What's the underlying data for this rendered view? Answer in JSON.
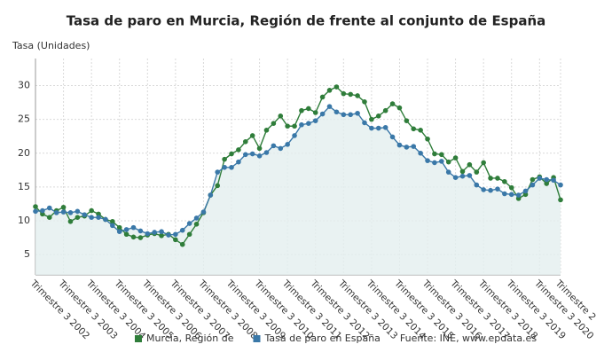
{
  "chart_data": {
    "type": "line",
    "title": "Tasa de paro en Murcia, Región de frente al conjunto de España",
    "y_label": "Tasa (Unidades)",
    "source": "Fuente: INE, www.epdata.es",
    "categories": [
      "Trimestre 3 2002",
      null,
      null,
      null,
      "Trimestre 3 2003",
      null,
      null,
      null,
      "Trimestre 3 2004",
      null,
      null,
      null,
      "Trimestre 3 2005",
      null,
      null,
      null,
      "Trimestre 3 2006",
      null,
      null,
      null,
      "Trimestre 3 2007",
      null,
      null,
      null,
      "Trimestre 3 2008",
      null,
      null,
      null,
      "Trimestre 3 2009",
      null,
      null,
      null,
      "Trimestre 3 2010",
      null,
      null,
      null,
      "Trimestre 3 2011",
      null,
      null,
      null,
      "Trimestre 3 2012",
      null,
      null,
      null,
      "Trimestre 3 2013",
      null,
      null,
      null,
      "Trimestre 3 2014",
      null,
      null,
      null,
      "Trimestre 3 2015",
      null,
      null,
      null,
      "Trimestre 3 2016",
      null,
      null,
      null,
      "Trimestre 3 2017",
      null,
      null,
      null,
      "Trimestre 3 2018",
      null,
      null,
      null,
      "Trimestre 3 2019",
      null,
      null,
      null,
      "Trimestre 3 2020",
      null,
      null,
      "Trimestre 2"
    ],
    "series": [
      {
        "name": "Murcia, Región de",
        "color": "#2f7d3a",
        "values": [
          12.1,
          11.0,
          10.5,
          11.5,
          12.0,
          9.9,
          10.5,
          10.7,
          11.5,
          11.0,
          10.2,
          9.9,
          9.0,
          8.0,
          7.6,
          7.5,
          7.9,
          8.1,
          7.8,
          8.0,
          7.2,
          6.5,
          8.0,
          9.5,
          11.2,
          13.8,
          15.2,
          19.1,
          19.9,
          20.5,
          21.7,
          22.6,
          20.7,
          23.4,
          24.4,
          25.5,
          24.0,
          24.0,
          26.3,
          26.6,
          26.0,
          28.3,
          29.3,
          29.8,
          28.8,
          28.7,
          28.5,
          27.6,
          25.0,
          25.5,
          26.3,
          27.3,
          26.7,
          24.8,
          23.6,
          23.4,
          22.1,
          19.9,
          19.8,
          18.7,
          19.3,
          17.3,
          18.3,
          17.2,
          18.6,
          16.3,
          16.3,
          15.8,
          14.9,
          13.3,
          13.9,
          16.1,
          16.5,
          15.5,
          16.4,
          13.1
        ]
      },
      {
        "name": "Tasa de paro en España",
        "color": "#3a78a8",
        "values": [
          11.4,
          11.5,
          11.9,
          11.2,
          11.3,
          11.2,
          11.4,
          10.9,
          10.5,
          10.5,
          10.2,
          9.3,
          8.4,
          8.7,
          9.0,
          8.5,
          8.1,
          8.3,
          8.4,
          7.9,
          8.0,
          8.6,
          9.6,
          10.4,
          11.3,
          13.8,
          17.2,
          17.9,
          17.9,
          18.7,
          19.8,
          19.9,
          19.6,
          20.1,
          21.1,
          20.7,
          21.3,
          22.6,
          24.2,
          24.4,
          24.8,
          25.8,
          26.9,
          26.1,
          25.7,
          25.7,
          25.9,
          24.5,
          23.7,
          23.7,
          23.8,
          22.4,
          21.2,
          20.9,
          21.0,
          20.0,
          18.9,
          18.6,
          18.8,
          17.2,
          16.4,
          16.6,
          16.7,
          15.3,
          14.6,
          14.5,
          14.7,
          14.0,
          13.9,
          13.8,
          14.4,
          15.3,
          16.3,
          16.1,
          16.0,
          15.3
        ]
      }
    ],
    "ylim": [
      2,
      34
    ],
    "yticks": [
      5,
      10,
      15,
      20,
      25,
      30
    ],
    "grid": true,
    "legend": "bottom"
  }
}
